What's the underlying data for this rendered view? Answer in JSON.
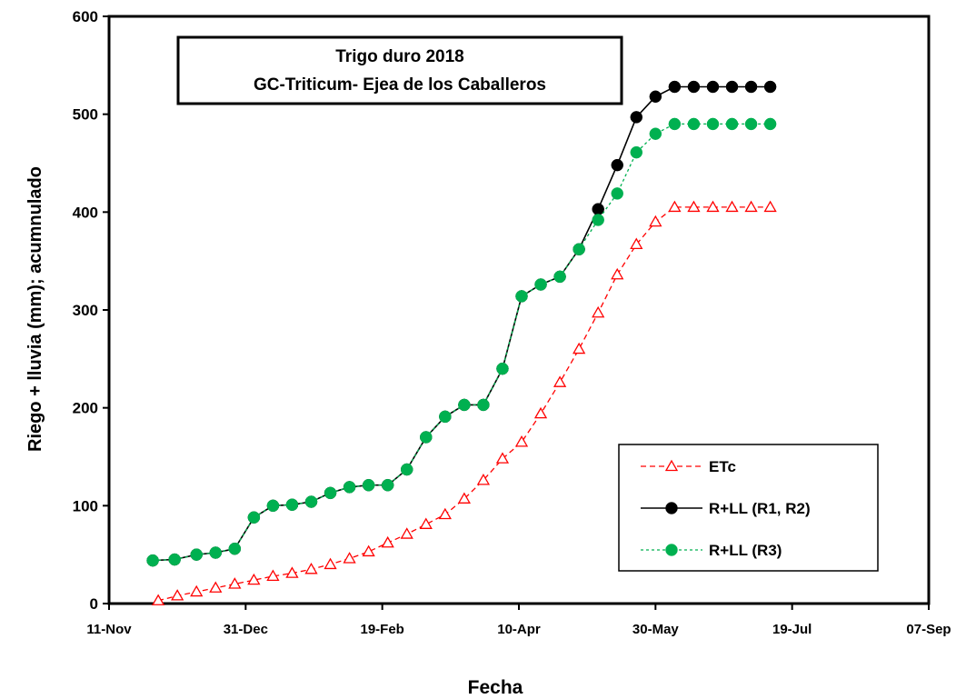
{
  "chart_data": {
    "type": "line",
    "title": "Trigo duro  2018",
    "subtitle": "GC-Triticum- Ejea de los Caballeros",
    "xlabel": "Fecha",
    "ylabel": "Riego + lluvia (mm); acumnulado",
    "x_axis": {
      "type": "date",
      "min": "2017-11-11",
      "max": "2018-09-07",
      "ticks": [
        "2017-11-11",
        "2017-12-31",
        "2018-02-19",
        "2018-04-10",
        "2018-05-30",
        "2018-07-19",
        "2018-09-07"
      ],
      "tick_labels": [
        "11-Nov",
        "31-Dec",
        "19-Feb",
        "10-Apr",
        "30-May",
        "19-Jul",
        "07-Sep"
      ]
    },
    "y_axis": {
      "min": 0,
      "max": 600,
      "ticks": [
        0,
        100,
        200,
        300,
        400,
        500,
        600
      ],
      "tick_labels": [
        "0",
        "100",
        "200",
        "300",
        "400",
        "500",
        "600"
      ]
    },
    "grid": false,
    "legend_position": "bottom-right",
    "series": [
      {
        "name": "ETc",
        "color": "#ff0000",
        "line": "dashed",
        "marker": "open-triangle",
        "points": [
          [
            "2017-11-29",
            3
          ],
          [
            "2017-12-06",
            8
          ],
          [
            "2017-12-13",
            12
          ],
          [
            "2017-12-20",
            16
          ],
          [
            "2017-12-27",
            20
          ],
          [
            "2018-01-03",
            24
          ],
          [
            "2018-01-10",
            28
          ],
          [
            "2018-01-17",
            31
          ],
          [
            "2018-01-24",
            35
          ],
          [
            "2018-01-31",
            40
          ],
          [
            "2018-02-07",
            46
          ],
          [
            "2018-02-14",
            53
          ],
          [
            "2018-02-21",
            62
          ],
          [
            "2018-02-28",
            71
          ],
          [
            "2018-03-07",
            81
          ],
          [
            "2018-03-14",
            91
          ],
          [
            "2018-03-21",
            107
          ],
          [
            "2018-03-28",
            126
          ],
          [
            "2018-04-04",
            148
          ],
          [
            "2018-04-11",
            165
          ],
          [
            "2018-04-18",
            194
          ],
          [
            "2018-04-25",
            226
          ],
          [
            "2018-05-02",
            260
          ],
          [
            "2018-05-09",
            297
          ],
          [
            "2018-05-16",
            336
          ],
          [
            "2018-05-23",
            367
          ],
          [
            "2018-05-30",
            390
          ],
          [
            "2018-06-06",
            405
          ],
          [
            "2018-06-13",
            405
          ],
          [
            "2018-06-20",
            405
          ],
          [
            "2018-06-27",
            405
          ],
          [
            "2018-07-04",
            405
          ],
          [
            "2018-07-11",
            405
          ]
        ]
      },
      {
        "name": "R+LL (R1, R2)",
        "color": "#000000",
        "line": "solid",
        "marker": "filled-circle",
        "points": [
          [
            "2017-11-27",
            44
          ],
          [
            "2017-12-05",
            45
          ],
          [
            "2017-12-13",
            50
          ],
          [
            "2017-12-20",
            52
          ],
          [
            "2017-12-27",
            56
          ],
          [
            "2018-01-03",
            88
          ],
          [
            "2018-01-10",
            100
          ],
          [
            "2018-01-17",
            101
          ],
          [
            "2018-01-24",
            104
          ],
          [
            "2018-01-31",
            113
          ],
          [
            "2018-02-07",
            119
          ],
          [
            "2018-02-14",
            121
          ],
          [
            "2018-02-21",
            121
          ],
          [
            "2018-02-28",
            137
          ],
          [
            "2018-03-07",
            170
          ],
          [
            "2018-03-14",
            191
          ],
          [
            "2018-03-21",
            203
          ],
          [
            "2018-03-28",
            203
          ],
          [
            "2018-04-04",
            240
          ],
          [
            "2018-04-11",
            314
          ],
          [
            "2018-04-18",
            326
          ],
          [
            "2018-04-25",
            334
          ],
          [
            "2018-05-02",
            362
          ],
          [
            "2018-05-09",
            403
          ],
          [
            "2018-05-16",
            448
          ],
          [
            "2018-05-23",
            497
          ],
          [
            "2018-05-30",
            518
          ],
          [
            "2018-06-06",
            528
          ],
          [
            "2018-06-13",
            528
          ],
          [
            "2018-06-20",
            528
          ],
          [
            "2018-06-27",
            528
          ],
          [
            "2018-07-04",
            528
          ],
          [
            "2018-07-11",
            528
          ]
        ]
      },
      {
        "name": "R+LL (R3)",
        "color": "#00b050",
        "line": "dotted",
        "marker": "filled-circle",
        "points": [
          [
            "2017-11-27",
            44
          ],
          [
            "2017-12-05",
            45
          ],
          [
            "2017-12-13",
            50
          ],
          [
            "2017-12-20",
            52
          ],
          [
            "2017-12-27",
            56
          ],
          [
            "2018-01-03",
            88
          ],
          [
            "2018-01-10",
            100
          ],
          [
            "2018-01-17",
            101
          ],
          [
            "2018-01-24",
            104
          ],
          [
            "2018-01-31",
            113
          ],
          [
            "2018-02-07",
            119
          ],
          [
            "2018-02-14",
            121
          ],
          [
            "2018-02-21",
            121
          ],
          [
            "2018-02-28",
            137
          ],
          [
            "2018-03-07",
            170
          ],
          [
            "2018-03-14",
            191
          ],
          [
            "2018-03-21",
            203
          ],
          [
            "2018-03-28",
            203
          ],
          [
            "2018-04-04",
            240
          ],
          [
            "2018-04-11",
            314
          ],
          [
            "2018-04-18",
            326
          ],
          [
            "2018-04-25",
            334
          ],
          [
            "2018-05-02",
            362
          ],
          [
            "2018-05-09",
            392
          ],
          [
            "2018-05-16",
            419
          ],
          [
            "2018-05-23",
            461
          ],
          [
            "2018-05-30",
            480
          ],
          [
            "2018-06-06",
            490
          ],
          [
            "2018-06-13",
            490
          ],
          [
            "2018-06-20",
            490
          ],
          [
            "2018-06-27",
            490
          ],
          [
            "2018-07-04",
            490
          ],
          [
            "2018-07-11",
            490
          ]
        ]
      }
    ]
  }
}
